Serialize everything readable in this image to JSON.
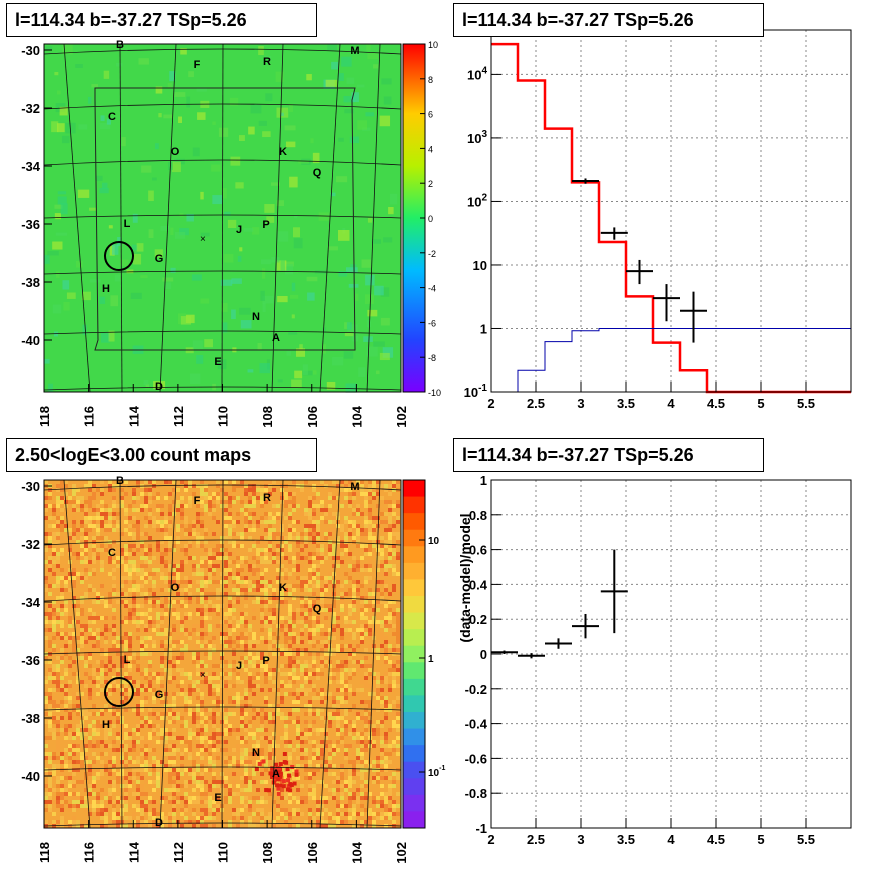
{
  "panels": {
    "tl_title": "l=114.34 b=-37.27 TSp=5.26",
    "tr_title": "l=114.34 b=-37.27 TSp=5.26",
    "bl_title": "2.50<logE<3.00 count maps",
    "br_title": "l=114.34 b=-37.27 TSp=5.26"
  },
  "chart_data": [
    {
      "type": "heatmap",
      "name": "TS map",
      "x_ticks": [
        "118",
        "116",
        "114",
        "112",
        "110",
        "108",
        "106",
        "104",
        "102"
      ],
      "y_ticks": [
        "-30",
        "-32",
        "-34",
        "-36",
        "-38",
        "-40"
      ],
      "xlim": [
        118,
        102
      ],
      "ylim": [
        -41.5,
        -29.8
      ],
      "colorbar_ticks": [
        "10",
        "8",
        "6",
        "4",
        "2",
        "0",
        "-2",
        "-4",
        "-6",
        "-8",
        "-10"
      ],
      "zlim": [
        -10,
        10
      ],
      "source_labels": [
        "B",
        "F",
        "R",
        "M",
        "C",
        "O",
        "K",
        "Q",
        "L",
        "J",
        "P",
        "G",
        "H",
        "N",
        "A",
        "E",
        "D"
      ],
      "circle_center": [
        114.34,
        -37.27
      ],
      "colors": {
        "background_main": "#3fd64a",
        "circle": "#000000"
      }
    },
    {
      "type": "line",
      "name": "spectrum",
      "xlim": [
        2,
        6
      ],
      "ylim": [
        0.1,
        50000
      ],
      "log_y": true,
      "x_ticks": [
        "2",
        "2.5",
        "3",
        "3.5",
        "4",
        "4.5",
        "5",
        "5.5"
      ],
      "y_ticks": [
        "10^-1",
        "1",
        "10",
        "10^2",
        "10^3",
        "10^4"
      ],
      "series": [
        {
          "values": [
            [
              2.0,
              30000
            ],
            [
              2.3,
              8000
            ],
            [
              2.6,
              1400
            ],
            [
              2.9,
              200
            ],
            [
              3.2,
              23
            ],
            [
              3.5,
              3.2
            ],
            [
              3.8,
              0.6
            ],
            [
              4.1,
              0.22
            ],
            [
              4.4,
              0.1
            ],
            [
              6.0,
              0.1
            ]
          ],
          "color": "#ff0000"
        },
        {
          "values": [
            [
              2.3,
              0.1
            ],
            [
              2.3,
              0.22
            ],
            [
              2.6,
              0.22
            ],
            [
              2.6,
              0.62
            ],
            [
              2.9,
              0.62
            ],
            [
              2.9,
              0.92
            ],
            [
              3.2,
              0.92
            ],
            [
              3.2,
              1.0
            ],
            [
              6.0,
              1.0
            ]
          ],
          "color": "#0000aa"
        }
      ],
      "data_points": [
        {
          "x": 3.05,
          "y": 210,
          "xerr": 0.15,
          "ylo": 190,
          "yhi": 230
        },
        {
          "x": 3.37,
          "y": 32,
          "xerr": 0.15,
          "ylo": 25,
          "yhi": 39
        },
        {
          "x": 3.65,
          "y": 8,
          "xerr": 0.15,
          "ylo": 5,
          "yhi": 12
        },
        {
          "x": 3.95,
          "y": 3,
          "xerr": 0.15,
          "ylo": 1.3,
          "yhi": 5
        },
        {
          "x": 4.25,
          "y": 1.9,
          "xerr": 0.15,
          "ylo": 0.6,
          "yhi": 3.8
        }
      ]
    },
    {
      "type": "heatmap",
      "name": "count map",
      "x_ticks": [
        "118",
        "116",
        "114",
        "112",
        "110",
        "108",
        "106",
        "104",
        "102"
      ],
      "y_ticks": [
        "-30",
        "-32",
        "-34",
        "-36",
        "-38",
        "-40"
      ],
      "colorbar_ticks": [
        "10",
        "1",
        "10^-1"
      ],
      "source_labels": [
        "B",
        "F",
        "R",
        "M",
        "C",
        "O",
        "K",
        "Q",
        "L",
        "J",
        "P",
        "G",
        "H",
        "N",
        "A",
        "E",
        "D"
      ],
      "hotspot_source": "A"
    },
    {
      "type": "scatter",
      "name": "residuals",
      "ylabel": "(data-model)/model",
      "xlim": [
        2,
        6
      ],
      "ylim": [
        -1,
        1
      ],
      "x_ticks": [
        "2",
        "2.5",
        "3",
        "3.5",
        "4",
        "4.5",
        "5",
        "5.5"
      ],
      "y_ticks": [
        "1",
        "0.8",
        "0.6",
        "0.4",
        "0.2",
        "0",
        "-0.2",
        "-0.4",
        "-0.6",
        "-0.8",
        "-1"
      ],
      "data_points": [
        {
          "x": 2.15,
          "y": 0.01,
          "xerr": 0.15,
          "yerr": 0.01
        },
        {
          "x": 2.45,
          "y": -0.01,
          "xerr": 0.15,
          "yerr": 0.015
        },
        {
          "x": 2.75,
          "y": 0.06,
          "xerr": 0.15,
          "yerr": 0.03
        },
        {
          "x": 3.05,
          "y": 0.16,
          "xerr": 0.15,
          "yerr": 0.07
        },
        {
          "x": 3.37,
          "y": 0.36,
          "xerr": 0.15,
          "yerr": 0.24
        }
      ]
    }
  ]
}
